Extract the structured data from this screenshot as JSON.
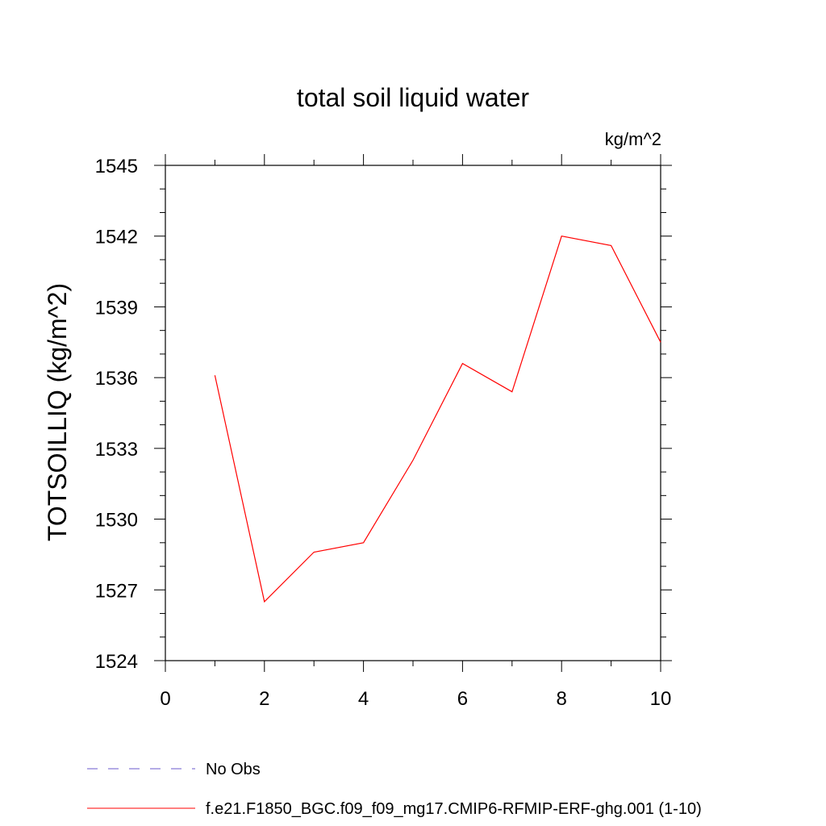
{
  "chart_data": {
    "type": "line",
    "title": "total soil liquid water",
    "units_label": "kg/m^2",
    "ylabel": "TOTSOILLIQ  (kg/m^2)",
    "xlabel": "",
    "xlim": [
      0,
      10
    ],
    "ylim": [
      1524,
      1545
    ],
    "x_ticks": [
      0,
      2,
      4,
      6,
      8,
      10
    ],
    "x_tick_labels": [
      "0",
      "2",
      "4",
      "6",
      "8",
      "10"
    ],
    "y_ticks": [
      1524,
      1527,
      1530,
      1533,
      1536,
      1539,
      1542,
      1545
    ],
    "y_tick_labels": [
      "1524",
      "1527",
      "1530",
      "1533",
      "1536",
      "1539",
      "1542",
      "1545"
    ],
    "grid": false,
    "series": [
      {
        "name": "f.e21.F1850_BGC.f09_f09_mg17.CMIP6-RFMIP-ERF-ghg.001 (1-10)",
        "color": "#ff0000",
        "style": "solid",
        "x": [
          1,
          2,
          3,
          4,
          5,
          6,
          7,
          8,
          9,
          10
        ],
        "values": [
          1536.1,
          1526.5,
          1528.6,
          1529.0,
          1532.5,
          1536.6,
          1535.4,
          1542.0,
          1541.6,
          1537.5
        ]
      }
    ],
    "legend": [
      {
        "label": "No Obs",
        "color": "#6a5acd",
        "style": "dashed"
      },
      {
        "label": "f.e21.F1850_BGC.f09_f09_mg17.CMIP6-RFMIP-ERF-ghg.001 (1-10)",
        "color": "#ff0000",
        "style": "solid"
      }
    ],
    "legend_position": "bottom-left"
  }
}
